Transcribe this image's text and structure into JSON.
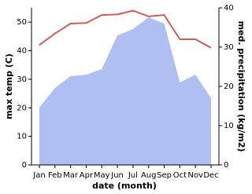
{
  "chart_data": {
    "type": "line-area",
    "x_label": "date (month)",
    "y_label": "max temp (C)",
    "y2_label": "med. precipitation (kg/m2)",
    "categories": [
      "Jan",
      "Feb",
      "Mar",
      "Apr",
      "May",
      "Jun",
      "Jul",
      "Aug",
      "Sep",
      "Oct",
      "Nov",
      "Dec"
    ],
    "series": [
      {
        "name": "max temp",
        "color": "#cd5c5c",
        "kind": "line",
        "values": [
          42,
          46,
          49.5,
          49.7,
          52.5,
          52.7,
          54,
          52,
          52.5,
          44,
          44,
          41
        ]
      },
      {
        "name": "med. precipitation",
        "color": "#b0bff2",
        "kind": "area",
        "axis": "y2",
        "values": [
          14.6,
          19.6,
          22.6,
          23,
          24.4,
          33,
          34.6,
          37.6,
          36,
          21,
          23,
          17
        ]
      }
    ],
    "ylim": [
      0,
      55
    ],
    "yticks": [
      0,
      10,
      20,
      30,
      40,
      50
    ],
    "y2lim": [
      0,
      40
    ],
    "y2ticks": [
      0,
      10,
      20,
      30,
      40
    ]
  }
}
